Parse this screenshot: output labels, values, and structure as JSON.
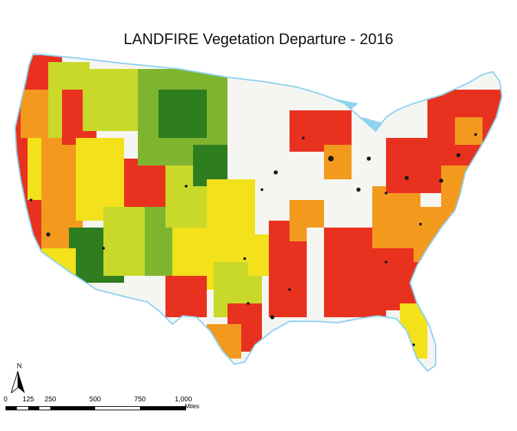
{
  "map": {
    "title": "LANDFIRE Vegetation Departure - 2016",
    "north_label": "N",
    "scale": {
      "ticks": [
        "0",
        "125",
        "250",
        "500",
        "750",
        "1,000"
      ],
      "units": "Miles"
    },
    "colors": {
      "water": "#8fd3ee",
      "urban": "#1a1a1a",
      "low_departure": "#2e7d1f",
      "low_mid": "#7fb52e",
      "mid": "#c8d92a",
      "mid_high": "#f2e11b",
      "high": "#f39a1e",
      "very_high": "#e8321f",
      "agriculture": "#f5f5f2"
    }
  }
}
